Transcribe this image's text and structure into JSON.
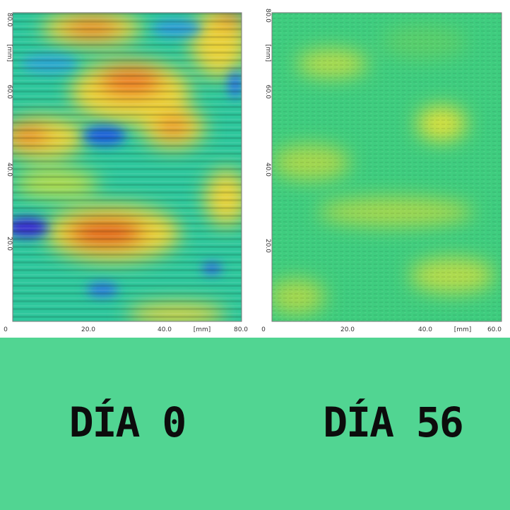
{
  "panels": [
    {
      "y_labels": [
        "80.0",
        "[mm]",
        "60.0",
        "40.0",
        "20.0"
      ],
      "origin": "0",
      "x_labels": [
        "20.0",
        "40.0",
        "[mm]",
        "80.0"
      ]
    },
    {
      "y_labels": [
        "80.0",
        "[mm]",
        "60.0",
        "40.0",
        "20.0"
      ],
      "origin": "0",
      "x_labels": [
        "20.0",
        "40.0",
        "[mm]",
        "60.0"
      ]
    }
  ],
  "captions": [
    "DÍA 0",
    "DÍA 56"
  ]
}
